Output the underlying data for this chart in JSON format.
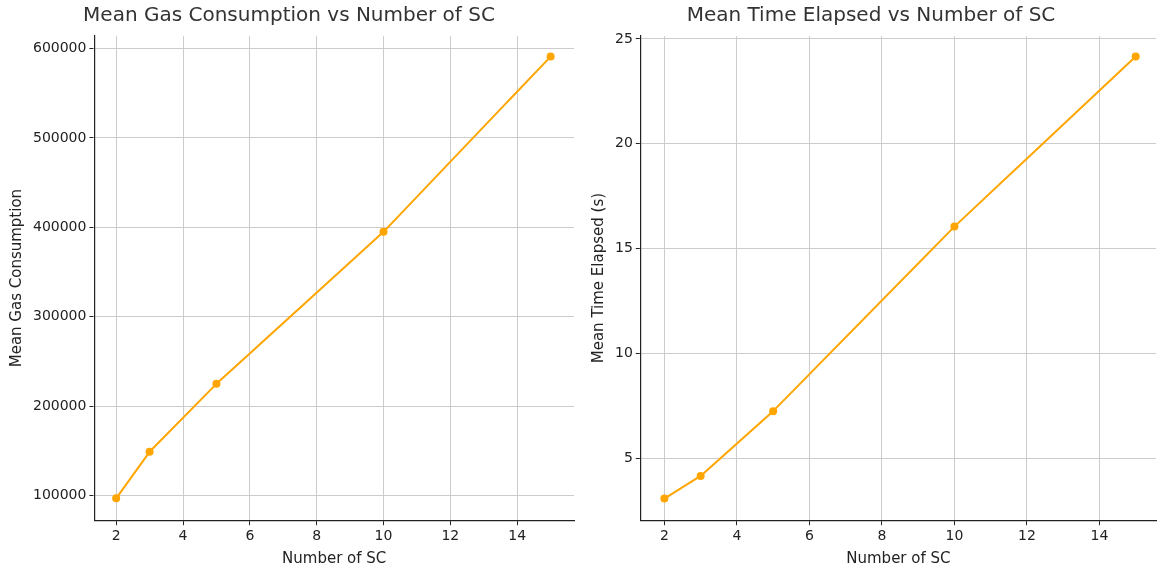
{
  "chart_data": [
    {
      "type": "line",
      "title": "Mean Gas Consumption vs Number of SC",
      "xlabel": "Number of SC",
      "ylabel": "Mean Gas Consumption",
      "x": [
        2,
        3,
        5,
        10,
        15
      ],
      "series": [
        {
          "color": "#ffa500",
          "values": [
            97000,
            149000,
            225000,
            395000,
            591000
          ]
        }
      ],
      "xlim": [
        1.35,
        15.7
      ],
      "xticks": [
        2,
        4,
        6,
        8,
        10,
        12,
        14
      ],
      "ylim": [
        72500,
        614000
      ],
      "yticks": [
        100000,
        200000,
        300000,
        400000,
        500000,
        600000
      ],
      "grid": true,
      "marker": "circle",
      "line_style": "solid"
    },
    {
      "type": "line",
      "title": "Mean Time Elapsed vs Number of SC",
      "xlabel": "Number of SC",
      "ylabel": "Mean Time Elapsed (s)",
      "x": [
        2,
        3,
        5,
        10,
        15
      ],
      "series": [
        {
          "color": "#ffa500",
          "values": [
            3.08,
            4.16,
            7.25,
            16.05,
            24.16
          ]
        }
      ],
      "xlim": [
        1.35,
        15.56
      ],
      "xticks": [
        2,
        4,
        6,
        8,
        10,
        12,
        14
      ],
      "ylim": [
        2.05,
        25.14
      ],
      "yticks": [
        5,
        10,
        15,
        20,
        25
      ],
      "grid": true,
      "marker": "circle",
      "line_style": "solid"
    }
  ]
}
